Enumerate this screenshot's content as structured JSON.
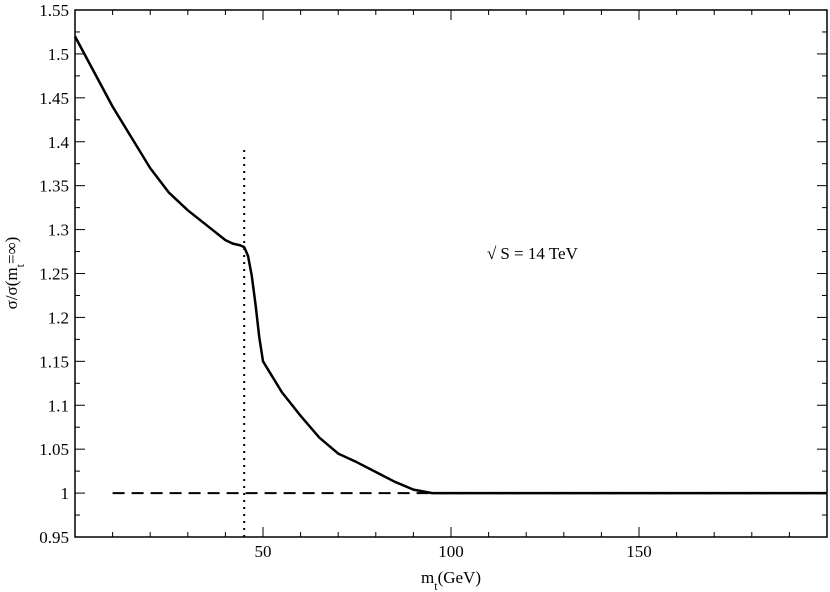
{
  "chart_data": {
    "type": "line",
    "title": "",
    "xlabel_main": "m",
    "xlabel_sub": "t",
    "xlabel_unit": "(GeV)",
    "ylabel_pre": "σ/σ(m",
    "ylabel_sub": "t",
    "ylabel_post": "=∞)",
    "xlim": [
      0,
      200
    ],
    "ylim": [
      0.95,
      1.55
    ],
    "xticks": [
      50,
      100,
      150
    ],
    "xtick_labels": [
      "50",
      "100",
      "150"
    ],
    "yticks": [
      0.95,
      1.0,
      1.05,
      1.1,
      1.15,
      1.2,
      1.25,
      1.3,
      1.35,
      1.4,
      1.45,
      1.5,
      1.55
    ],
    "ytick_labels": [
      "0.95",
      "1",
      "1.05",
      "1.1",
      "1.15",
      "1.2",
      "1.25",
      "1.3",
      "1.35",
      "1.4",
      "1.45",
      "1.5",
      "1.55"
    ],
    "annotation": {
      "sqrt": "√",
      "text": "S = 14 TeV"
    },
    "series": [
      {
        "style": "solid",
        "x": [
          0,
          5,
          10,
          15,
          20,
          25,
          30,
          35,
          40,
          42,
          44,
          45,
          46,
          47,
          48,
          49,
          50,
          55,
          60,
          65,
          70,
          75,
          80,
          85,
          90,
          95,
          100,
          120,
          150,
          180,
          200
        ],
        "y": [
          1.52,
          1.48,
          1.44,
          1.405,
          1.37,
          1.342,
          1.322,
          1.305,
          1.288,
          1.284,
          1.282,
          1.28,
          1.27,
          1.248,
          1.215,
          1.178,
          1.15,
          1.115,
          1.088,
          1.063,
          1.045,
          1.035,
          1.024,
          1.013,
          1.004,
          1.0,
          1.0,
          1.0,
          1.0,
          1.0,
          1.0
        ]
      },
      {
        "style": "dashed",
        "x": [
          10,
          200
        ],
        "y": [
          1.0,
          1.0
        ]
      },
      {
        "style": "dotted",
        "x": [
          45,
          45
        ],
        "y": [
          0.95,
          1.395
        ]
      }
    ]
  }
}
